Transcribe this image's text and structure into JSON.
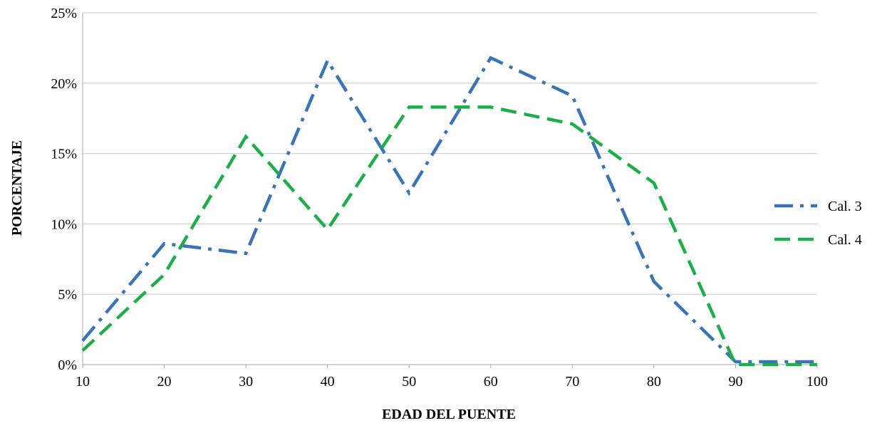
{
  "chart_data": {
    "type": "line",
    "title": "",
    "xlabel": "EDAD DEL PUENTE",
    "ylabel": "PORCENTAJE",
    "xlim": [
      10,
      100
    ],
    "ylim": [
      0,
      25
    ],
    "x_ticks": [
      10,
      20,
      30,
      40,
      50,
      60,
      70,
      80,
      90,
      100
    ],
    "x_tick_labels": [
      "10",
      "20",
      "30",
      "40",
      "50",
      "60",
      "70",
      "80",
      "90",
      "100"
    ],
    "y_ticks": [
      0,
      5,
      10,
      15,
      20,
      25
    ],
    "y_tick_labels": [
      "0%",
      "5%",
      "10%",
      "15%",
      "20%",
      "25%"
    ],
    "grid": "horizontal",
    "legend_position": "right",
    "series": [
      {
        "name": "Cal. 3",
        "color": "#3a74b6",
        "dash": "dash-dot",
        "x": [
          10,
          20,
          30,
          40,
          50,
          60,
          70,
          80,
          90,
          100
        ],
        "y": [
          1.7,
          8.6,
          7.9,
          21.6,
          12.2,
          21.8,
          19.1,
          5.9,
          0.2,
          0.2
        ]
      },
      {
        "name": "Cal. 4",
        "color": "#1fad4b",
        "dash": "dashed",
        "x": [
          10,
          20,
          30,
          40,
          50,
          60,
          70,
          80,
          90,
          100
        ],
        "y": [
          1.0,
          6.4,
          16.2,
          9.6,
          18.3,
          18.3,
          17.1,
          12.9,
          0.0,
          0.0
        ]
      }
    ]
  }
}
